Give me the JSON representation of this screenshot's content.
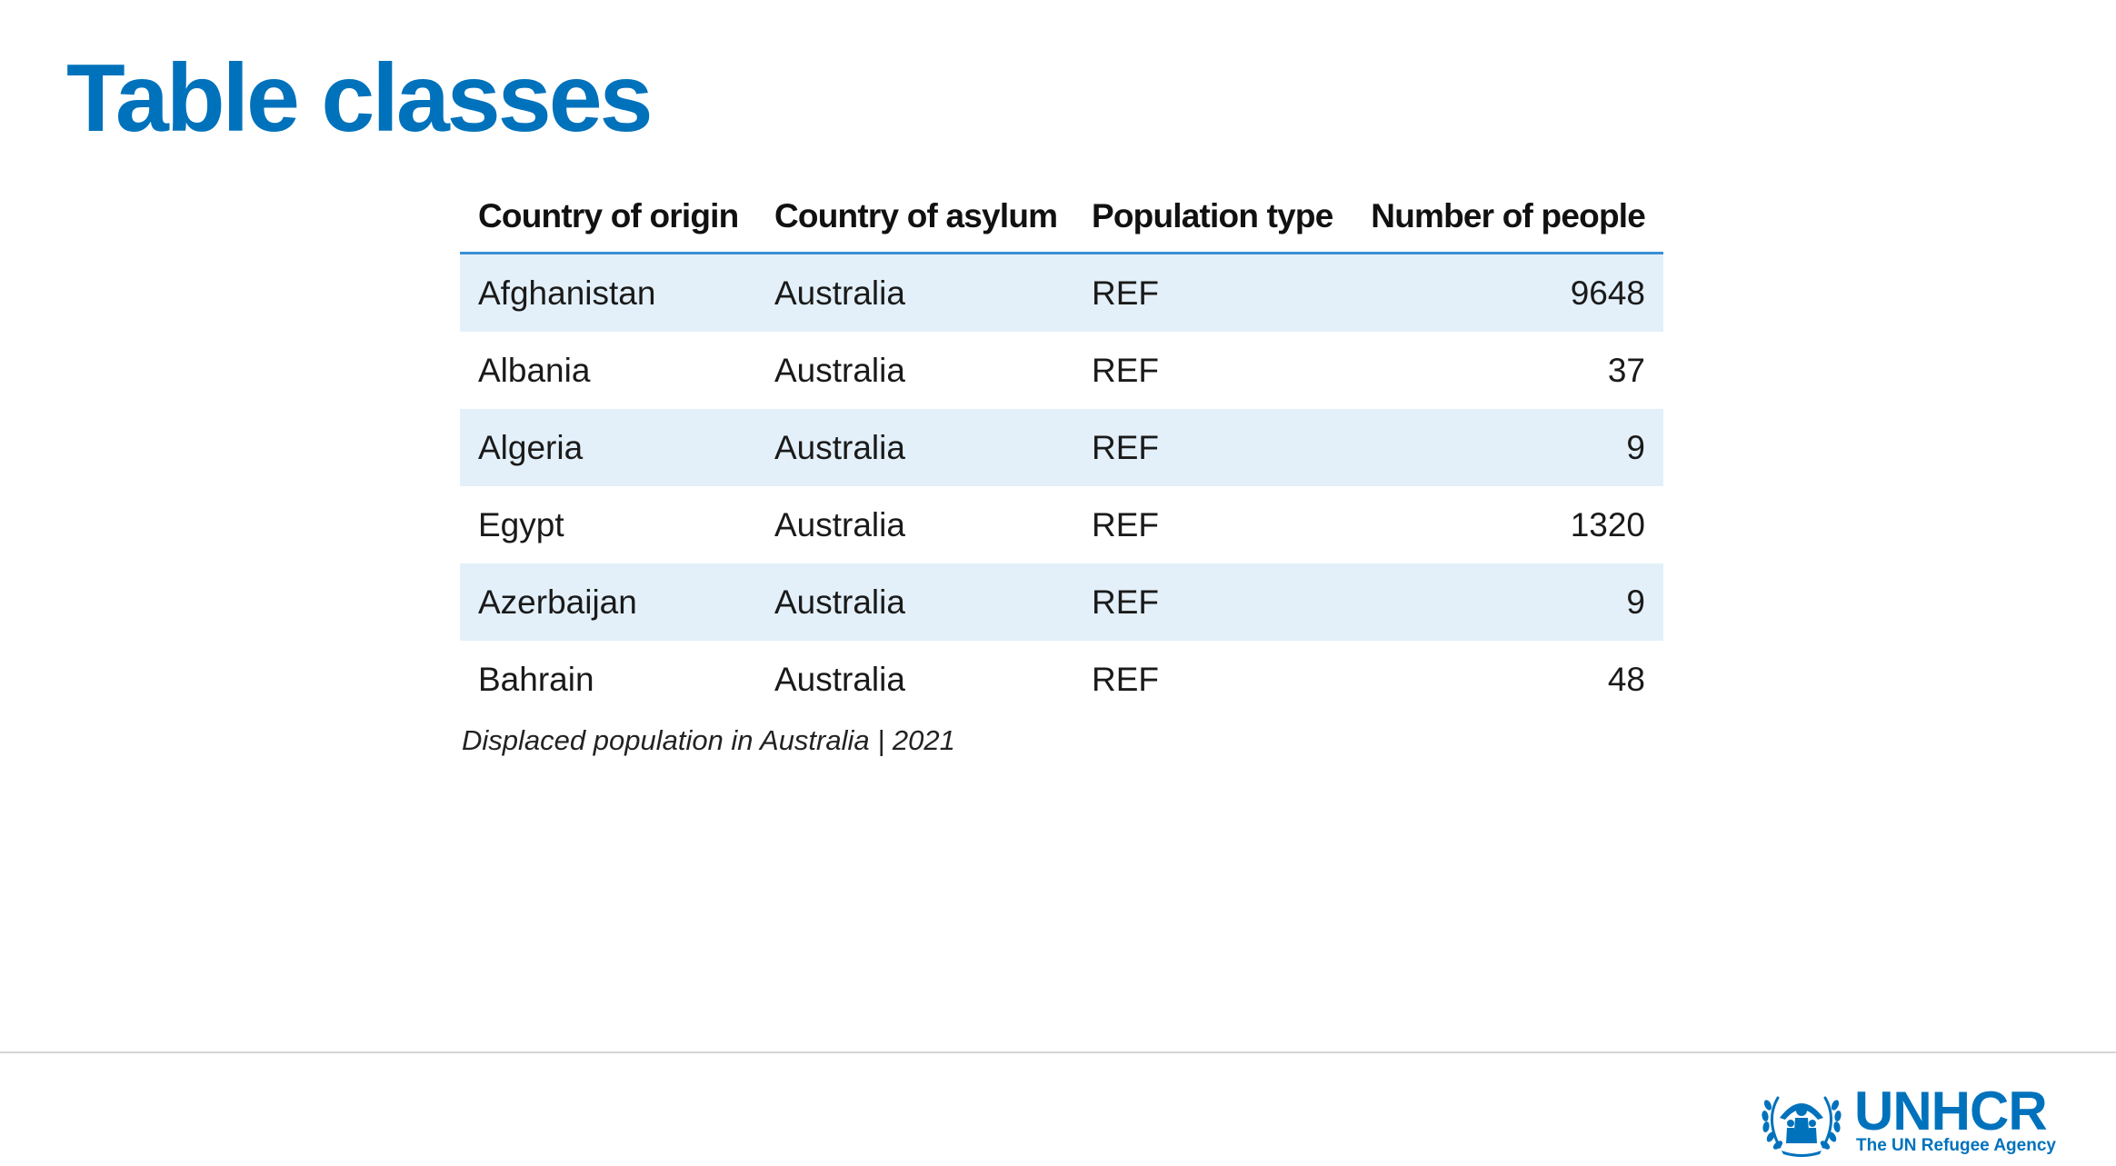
{
  "slide": {
    "title": "Table classes"
  },
  "table": {
    "columns": [
      {
        "label": "Country of origin"
      },
      {
        "label": "Country of asylum"
      },
      {
        "label": "Population type"
      },
      {
        "label": "Number of people"
      }
    ],
    "rows": [
      {
        "origin": "Afghanistan",
        "asylum": "Australia",
        "type": "REF",
        "people": "9648"
      },
      {
        "origin": "Albania",
        "asylum": "Australia",
        "type": "REF",
        "people": "37"
      },
      {
        "origin": "Algeria",
        "asylum": "Australia",
        "type": "REF",
        "people": "9"
      },
      {
        "origin": "Egypt",
        "asylum": "Australia",
        "type": "REF",
        "people": "1320"
      },
      {
        "origin": "Azerbaijan",
        "asylum": "Australia",
        "type": "REF",
        "people": "9"
      },
      {
        "origin": "Bahrain",
        "asylum": "Australia",
        "type": "REF",
        "people": "48"
      }
    ],
    "caption": "Displaced population in Australia | 2021"
  },
  "logo": {
    "name": "UNHCR",
    "tagline": "The UN Refugee Agency",
    "icon": "unhcr-emblem-icon"
  },
  "colors": {
    "brand": "#0072bc",
    "header_rule": "#3b8fd4",
    "stripe": "#e3f0f9"
  }
}
